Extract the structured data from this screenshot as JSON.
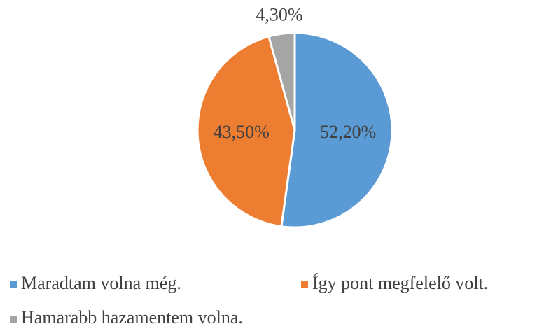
{
  "chart_data": {
    "type": "pie",
    "categories": [
      "Maradtam volna még.",
      "Így pont megfelelő volt.",
      "Hamarabb hazamentem volna."
    ],
    "values": [
      52.2,
      43.5,
      4.3
    ],
    "value_labels": [
      "52,20%",
      "43,50%",
      "4,30%"
    ],
    "colors": [
      "#5b9bd5",
      "#ed7d31",
      "#a5a5a5"
    ],
    "legend": "bottom"
  }
}
